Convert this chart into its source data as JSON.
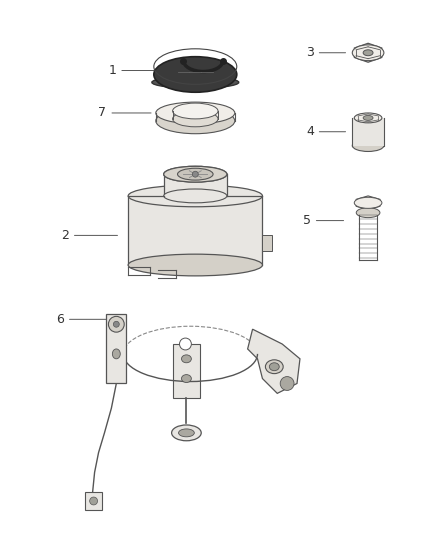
{
  "bg_color": "#ffffff",
  "line_color": "#555555",
  "label_color": "#333333",
  "fig_width": 4.38,
  "fig_height": 5.33,
  "dpi": 100
}
